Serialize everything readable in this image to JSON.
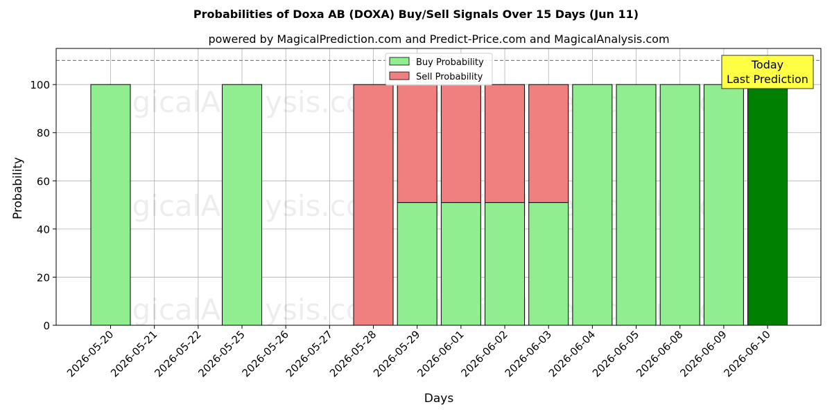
{
  "chart_data": {
    "type": "bar",
    "title": "Probabilities of Doxa AB (DOXA) Buy/Sell Signals Over 15 Days (Jun 11)",
    "subtitle": "powered by MagicalPrediction.com and Predict-Price.com and MagicalAnalysis.com",
    "xlabel": "Days",
    "ylabel": "Probability",
    "ylim": [
      0,
      115
    ],
    "yticks": [
      0,
      20,
      40,
      60,
      80,
      100
    ],
    "reference_line": 110,
    "grid": true,
    "legend_position": "top-center",
    "categories": [
      "2026-05-20",
      "2026-05-21",
      "2026-05-22",
      "2026-05-25",
      "2026-05-26",
      "2026-05-27",
      "2026-05-28",
      "2026-05-29",
      "2026-06-01",
      "2026-06-02",
      "2026-06-03",
      "2026-06-04",
      "2026-06-05",
      "2026-06-08",
      "2026-06-09",
      "2026-06-10"
    ],
    "series": [
      {
        "name": "Buy Probability",
        "color": "#90EE90",
        "values": [
          100,
          0,
          0,
          100,
          0,
          0,
          0,
          51,
          51,
          51,
          51,
          100,
          100,
          100,
          100,
          100
        ]
      },
      {
        "name": "Sell Probability",
        "color": "#F08080",
        "values": [
          0,
          0,
          0,
          0,
          0,
          0,
          100,
          49,
          49,
          49,
          49,
          0,
          0,
          0,
          0,
          0
        ]
      }
    ],
    "highlight": {
      "index": 15,
      "color": "#008000",
      "label_line1": "Today",
      "label_line2": "Last Prediction",
      "box_color": "#FFFF44"
    },
    "watermarks": [
      "MagicalAnalysis.com",
      "MagicalPrediction.com"
    ]
  }
}
